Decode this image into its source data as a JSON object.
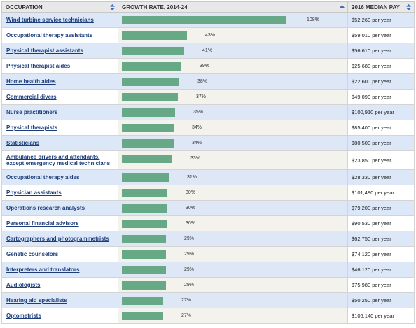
{
  "header": {
    "occupation_label": "OCCUPATION",
    "growth_label": "GROWTH RATE, 2014-24",
    "pay_label": "2016 MEDIAN PAY"
  },
  "rows": [
    {
      "occupation": "Wind turbine service technicians",
      "growth_pct": 108,
      "growth_label": "108%",
      "pay": "$52,260 per year"
    },
    {
      "occupation": "Occupational therapy assistants",
      "growth_pct": 43,
      "growth_label": "43%",
      "pay": "$59,010 per year"
    },
    {
      "occupation": "Physical therapist assistants",
      "growth_pct": 41,
      "growth_label": "41%",
      "pay": "$56,610 per year"
    },
    {
      "occupation": "Physical therapist aides",
      "growth_pct": 39,
      "growth_label": "39%",
      "pay": "$25,680 per year"
    },
    {
      "occupation": "Home health aides",
      "growth_pct": 38,
      "growth_label": "38%",
      "pay": "$22,600 per year"
    },
    {
      "occupation": "Commercial divers",
      "growth_pct": 37,
      "growth_label": "37%",
      "pay": "$49,090 per year"
    },
    {
      "occupation": "Nurse practitioners",
      "growth_pct": 35,
      "growth_label": "35%",
      "pay": "$100,910 per year"
    },
    {
      "occupation": "Physical therapists",
      "growth_pct": 34,
      "growth_label": "34%",
      "pay": "$85,400 per year"
    },
    {
      "occupation": "Statisticians",
      "growth_pct": 34,
      "growth_label": "34%",
      "pay": "$80,500 per year"
    },
    {
      "occupation": "Ambulance drivers and attendants, except emergency medical technicians",
      "growth_pct": 33,
      "growth_label": "33%",
      "pay": "$23,850 per year"
    },
    {
      "occupation": "Occupational therapy aides",
      "growth_pct": 31,
      "growth_label": "31%",
      "pay": "$28,330 per year"
    },
    {
      "occupation": "Physician assistants",
      "growth_pct": 30,
      "growth_label": "30%",
      "pay": "$101,480 per year"
    },
    {
      "occupation": "Operations research analysts",
      "growth_pct": 30,
      "growth_label": "30%",
      "pay": "$79,200 per year"
    },
    {
      "occupation": "Personal financial advisors",
      "growth_pct": 30,
      "growth_label": "30%",
      "pay": "$90,530 per year"
    },
    {
      "occupation": "Cartographers and photogrammetrists",
      "growth_pct": 29,
      "growth_label": "29%",
      "pay": "$62,750 per year"
    },
    {
      "occupation": "Genetic counselors",
      "growth_pct": 29,
      "growth_label": "29%",
      "pay": "$74,120 per year"
    },
    {
      "occupation": "Interpreters and translators",
      "growth_pct": 29,
      "growth_label": "29%",
      "pay": "$46,120 per year"
    },
    {
      "occupation": "Audiologists",
      "growth_pct": 29,
      "growth_label": "29%",
      "pay": "$75,980 per year"
    },
    {
      "occupation": "Hearing aid specialists",
      "growth_pct": 27,
      "growth_label": "27%",
      "pay": "$50,250 per year"
    },
    {
      "occupation": "Optometrists",
      "growth_pct": 27,
      "growth_label": "27%",
      "pay": "$106,140 per year"
    }
  ],
  "colors": {
    "bar": "#67a886",
    "link": "#1c3d7a"
  },
  "icons": {
    "sort_both": "sort-both-icon",
    "sort_up": "sort-up-icon"
  }
}
